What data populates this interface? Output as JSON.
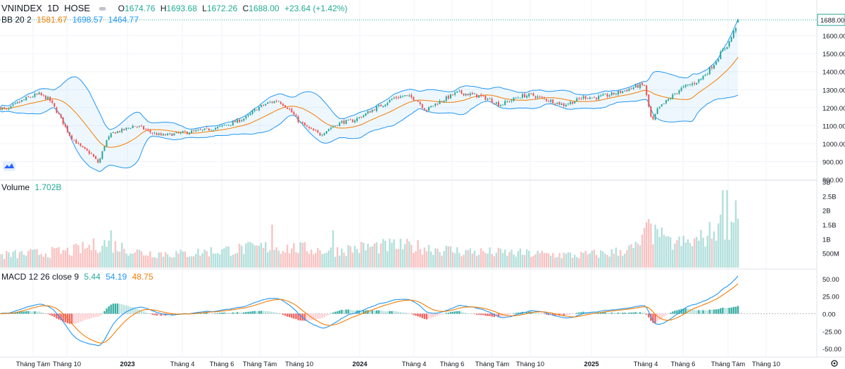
{
  "header": {
    "symbol": "VNINDEX",
    "interval": "1D",
    "exchange": "HOSE",
    "ohlc": {
      "o_label": "O",
      "o": "1674.76",
      "h_label": "H",
      "h": "1693.68",
      "l_label": "L",
      "l": "1672.26",
      "c_label": "C",
      "c": "1688.00",
      "change": "+23.64 (+1.42%)"
    }
  },
  "bb_legend": {
    "label": "BB 20 2",
    "basis": "1581.67",
    "upper": "1698.57",
    "lower": "1464.77"
  },
  "volume_legend": {
    "label": "Volume",
    "value": "1.702B"
  },
  "macd_legend": {
    "label": "MACD 12 26 close 9",
    "hist": "5.44",
    "macd": "54.19",
    "signal": "48.75"
  },
  "colors": {
    "up": "#26a69a",
    "down": "#ef5350",
    "basis": "#f57c00",
    "band": "#2196f3",
    "bandfill": "rgba(33,150,243,0.08)",
    "grid": "#f0f3fa",
    "axis": "#131722"
  },
  "chart_data": {
    "type": "candlestick",
    "title": "VNINDEX 1D HOSE",
    "price_axis": {
      "ticks": [
        "1688.00",
        "1600.00",
        "1500.00",
        "1400.00",
        "1300.00",
        "1200.00",
        "1100.00",
        "1000.00",
        "900.00",
        "800.00"
      ],
      "ylim": [
        800,
        1720
      ],
      "last": "1688.00"
    },
    "volume_axis": {
      "ticks": [
        "3B",
        "2.5B",
        "2B",
        "1.5B",
        "1B",
        "500M"
      ],
      "ylim": [
        0,
        3000000000
      ]
    },
    "macd_axis": {
      "ticks": [
        "50.00",
        "25.00",
        "0.00",
        "-25.00",
        "-50.00"
      ],
      "ylim": [
        -60,
        62
      ]
    },
    "time_axis": {
      "labels": [
        "Tháng Tám",
        "Tháng 10",
        "2023",
        "Tháng 4",
        "Tháng 6",
        "Tháng Tám",
        "Tháng 10",
        "2024",
        "Tháng 4",
        "Tháng 6",
        "Tháng Tám",
        "Tháng 10",
        "2025",
        "Tháng 4",
        "Tháng 6",
        "Tháng Tám",
        "Tháng 10"
      ],
      "bold": [
        "2023",
        "2024",
        "2025"
      ]
    },
    "price_anchors": [
      [
        0,
        1200
      ],
      [
        10,
        1185
      ],
      [
        25,
        1225
      ],
      [
        40,
        1255
      ],
      [
        55,
        1275
      ],
      [
        70,
        1245
      ],
      [
        85,
        1150
      ],
      [
        100,
        1040
      ],
      [
        115,
        980
      ],
      [
        130,
        940
      ],
      [
        140,
        890
      ],
      [
        150,
        1010
      ],
      [
        160,
        1060
      ],
      [
        175,
        1075
      ],
      [
        190,
        1100
      ],
      [
        200,
        1090
      ],
      [
        215,
        1060
      ],
      [
        230,
        1045
      ],
      [
        250,
        1055
      ],
      [
        270,
        1065
      ],
      [
        290,
        1075
      ],
      [
        310,
        1090
      ],
      [
        330,
        1115
      ],
      [
        350,
        1145
      ],
      [
        365,
        1195
      ],
      [
        380,
        1225
      ],
      [
        395,
        1240
      ],
      [
        410,
        1195
      ],
      [
        425,
        1120
      ],
      [
        440,
        1080
      ],
      [
        455,
        1050
      ],
      [
        470,
        1090
      ],
      [
        485,
        1120
      ],
      [
        500,
        1125
      ],
      [
        515,
        1155
      ],
      [
        530,
        1190
      ],
      [
        545,
        1220
      ],
      [
        560,
        1255
      ],
      [
        575,
        1265
      ],
      [
        590,
        1250
      ],
      [
        605,
        1185
      ],
      [
        620,
        1225
      ],
      [
        635,
        1255
      ],
      [
        650,
        1285
      ],
      [
        665,
        1275
      ],
      [
        680,
        1265
      ],
      [
        695,
        1245
      ],
      [
        710,
        1215
      ],
      [
        725,
        1240
      ],
      [
        740,
        1265
      ],
      [
        755,
        1270
      ],
      [
        770,
        1250
      ],
      [
        785,
        1235
      ],
      [
        800,
        1215
      ],
      [
        815,
        1235
      ],
      [
        830,
        1260
      ],
      [
        845,
        1255
      ],
      [
        860,
        1265
      ],
      [
        875,
        1280
      ],
      [
        890,
        1300
      ],
      [
        905,
        1320
      ],
      [
        915,
        1325
      ],
      [
        922,
        1190
      ],
      [
        926,
        1115
      ],
      [
        934,
        1190
      ],
      [
        945,
        1230
      ],
      [
        955,
        1265
      ],
      [
        965,
        1300
      ],
      [
        975,
        1320
      ],
      [
        985,
        1335
      ],
      [
        995,
        1360
      ],
      [
        1005,
        1400
      ],
      [
        1015,
        1450
      ],
      [
        1025,
        1510
      ],
      [
        1035,
        1560
      ],
      [
        1042,
        1620
      ],
      [
        1048,
        1688
      ]
    ],
    "volume_anchors": [
      [
        0,
        0.45
      ],
      [
        100,
        0.6
      ],
      [
        150,
        0.9
      ],
      [
        200,
        0.55
      ],
      [
        260,
        0.5
      ],
      [
        300,
        0.6
      ],
      [
        380,
        0.75
      ],
      [
        430,
        0.7
      ],
      [
        470,
        0.6
      ],
      [
        520,
        0.75
      ],
      [
        560,
        0.8
      ],
      [
        600,
        0.75
      ],
      [
        650,
        0.6
      ],
      [
        700,
        0.55
      ],
      [
        760,
        0.5
      ],
      [
        820,
        0.45
      ],
      [
        870,
        0.55
      ],
      [
        905,
        0.75
      ],
      [
        920,
        1.35
      ],
      [
        940,
        0.9
      ],
      [
        980,
        0.9
      ],
      [
        1000,
        1.1
      ],
      [
        1020,
        1.5
      ],
      [
        1048,
        1.7
      ]
    ],
    "volume_spikes": [
      [
        159,
        1.3
      ],
      [
        385,
        1.5
      ],
      [
        474,
        1.3
      ],
      [
        922,
        1.7
      ],
      [
        929,
        1.5
      ],
      [
        939,
        1.4
      ],
      [
        1025,
        2.7
      ],
      [
        1031,
        2.7
      ],
      [
        1045,
        2.35
      ]
    ],
    "macd": {
      "fast": 12,
      "slow": 26,
      "signal": 9,
      "last_macd": 54.19,
      "last_signal": 48.75,
      "last_hist": 5.44
    },
    "bollinger": {
      "length": 20,
      "mult": 2,
      "last_basis": 1581.67,
      "last_upper": 1698.57,
      "last_lower": 1464.77
    }
  }
}
